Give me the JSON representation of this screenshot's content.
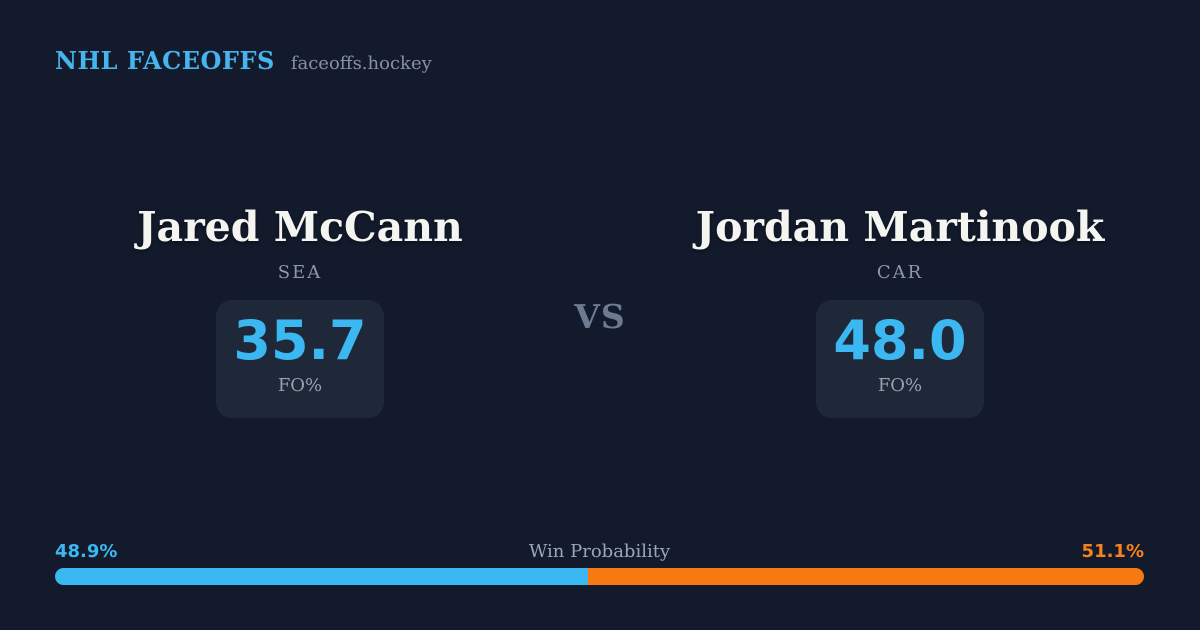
{
  "colors": {
    "background": "#121a2b",
    "card_bg": "#1e2838",
    "accent_blue": "#3bb8f2",
    "accent_orange": "#f7790f",
    "name_white": "#f4f4f0",
    "muted_gray": "#8c97aa"
  },
  "header": {
    "brand": "NHL FACEOFFS",
    "site": "faceoffs.hockey"
  },
  "matchup": {
    "vs_label": "VS",
    "players": [
      {
        "name": "Jared McCann",
        "team": "SEA",
        "stat_value": "35.7",
        "stat_label": "FO%"
      },
      {
        "name": "Jordan Martinook",
        "team": "CAR",
        "stat_value": "48.0",
        "stat_label": "FO%"
      }
    ]
  },
  "win_probability": {
    "label": "Win Probability",
    "left_pct_label": "48.9%",
    "right_pct_label": "51.1%",
    "left_value": 48.9,
    "right_value": 51.1
  },
  "chart_data": {
    "type": "bar",
    "title": "Win Probability",
    "categories": [
      "Jared McCann (SEA)",
      "Jordan Martinook (CAR)"
    ],
    "series": [
      {
        "name": "Faceoff %",
        "values": [
          35.7,
          48.0
        ]
      },
      {
        "name": "Win Probability %",
        "values": [
          48.9,
          51.1
        ]
      }
    ],
    "xlabel": "",
    "ylabel": "",
    "ylim": [
      0,
      100
    ],
    "grid": false,
    "legend_position": "none",
    "annotations": [
      "48.9%",
      "51.1%",
      "FO%",
      "FO%"
    ]
  }
}
